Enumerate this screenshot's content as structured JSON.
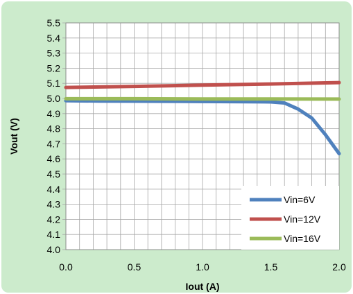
{
  "chart_data": {
    "type": "line",
    "xlabel": "Iout (A)",
    "ylabel": "Vout (V)",
    "xlim": [
      0.0,
      2.0
    ],
    "ylim": [
      4.0,
      5.5
    ],
    "x_ticks": [
      "0.0",
      "0.5",
      "1.0",
      "1.5",
      "2.0"
    ],
    "y_ticks": [
      "4.0",
      "4.1",
      "4.2",
      "4.3",
      "4.4",
      "4.5",
      "4.6",
      "4.7",
      "4.8",
      "4.9",
      "5.0",
      "5.1",
      "5.2",
      "5.3",
      "5.4",
      "5.5"
    ],
    "grid": true,
    "legend_position": "bottom-right",
    "background_color": "#ccebcc",
    "plot_background_color": "#ffffff",
    "series": [
      {
        "name": "Vin=6V",
        "color": "#4f81bd",
        "x": [
          0.0,
          0.25,
          0.5,
          0.75,
          1.0,
          1.25,
          1.5,
          1.6,
          1.7,
          1.8,
          1.9,
          2.0
        ],
        "y": [
          4.985,
          4.983,
          4.982,
          4.981,
          4.98,
          4.979,
          4.977,
          4.97,
          4.93,
          4.87,
          4.76,
          4.635
        ]
      },
      {
        "name": "Vin=12V",
        "color": "#c0504d",
        "x": [
          0.0,
          0.5,
          1.0,
          1.5,
          2.0
        ],
        "y": [
          5.073,
          5.08,
          5.088,
          5.096,
          5.105
        ]
      },
      {
        "name": "Vin=16V",
        "color": "#9bbb59",
        "x": [
          0.0,
          0.5,
          1.0,
          1.5,
          2.0
        ],
        "y": [
          4.998,
          4.998,
          4.997,
          4.997,
          4.996
        ]
      }
    ]
  }
}
